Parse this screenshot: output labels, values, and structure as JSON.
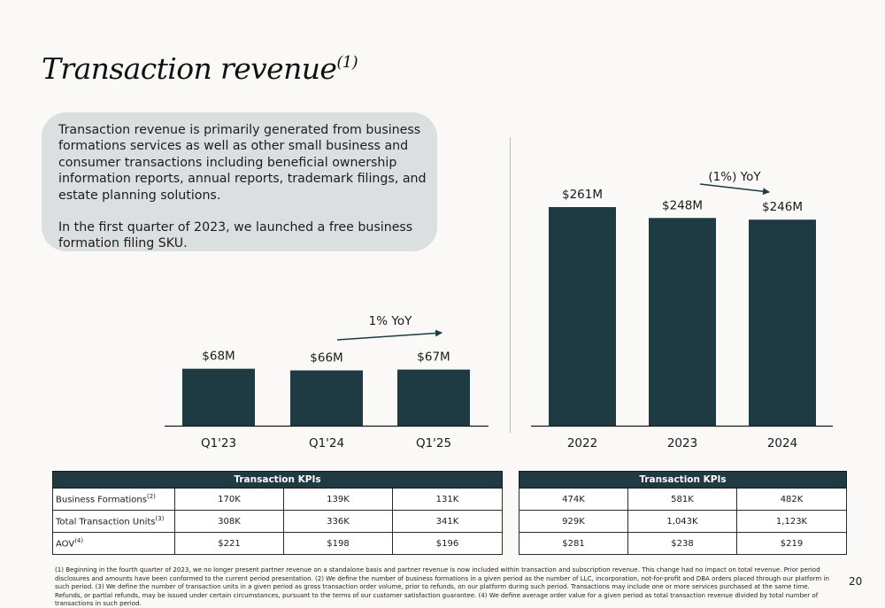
{
  "page": {
    "title": "Transaction revenue",
    "title_note": "(1)",
    "page_number": "20"
  },
  "textbox": {
    "paragraph1": "Transaction revenue is primarily generated from business formations services as well as other small business and consumer transactions including beneficial ownership information reports, annual reports, trademark filings, and estate planning solutions.",
    "paragraph2": "In the first quarter of 2023, we launched a free business formation filing SKU."
  },
  "colors": {
    "bar": "#1e3a42",
    "header": "#1f3a42",
    "textbox_bg": "#dcdfdf"
  },
  "chart_data": [
    {
      "type": "bar",
      "categories": [
        "Q1'23",
        "Q1'24",
        "Q1'25"
      ],
      "values": [
        68,
        66,
        67
      ],
      "value_labels": [
        "$68M",
        "$66M",
        "$67M"
      ],
      "unit": "$M",
      "annotation": "1% YoY",
      "ylim": [
        0,
        261
      ],
      "grid": false
    },
    {
      "type": "bar",
      "categories": [
        "2022",
        "2023",
        "2024"
      ],
      "values": [
        261,
        248,
        246
      ],
      "value_labels": [
        "$261M",
        "$248M",
        "$246M"
      ],
      "unit": "$M",
      "annotation": "(1%) YoY",
      "ylim": [
        0,
        261
      ],
      "grid": false
    }
  ],
  "kpi_left": {
    "header": "Transaction KPIs",
    "rows": [
      {
        "label": "Business Formations",
        "note": "(2)",
        "values": [
          "170K",
          "139K",
          "131K"
        ]
      },
      {
        "label": "Total Transaction Units",
        "note": "(3)",
        "values": [
          "308K",
          "336K",
          "341K"
        ]
      },
      {
        "label": "AOV",
        "note": "(4)",
        "values": [
          "$221",
          "$198",
          "$196"
        ]
      }
    ]
  },
  "kpi_right": {
    "header": "Transaction KPIs",
    "rows": [
      {
        "values": [
          "474K",
          "581K",
          "482K"
        ]
      },
      {
        "values": [
          "929K",
          "1,043K",
          "1,123K"
        ]
      },
      {
        "values": [
          "$281",
          "$238",
          "$219"
        ]
      }
    ]
  },
  "footnote": "(1) Beginning in the fourth quarter of 2023, we no longer present partner revenue on a standalone basis and partner revenue is now included within transaction and subscription revenue. This change had no impact on total revenue. Prior period disclosures and amounts have been conformed to the current period presentation. (2) We define the number of business formations in a given period as the number of LLC, incorporation, not-for-profit and DBA orders placed through our platform in such period. (3) We define the number of transaction units in a given period as gross transaction order volume, prior to refunds, on our platform during such period. Transactions may include one or more services purchased at the same time. Refunds, or partial refunds, may be issued under certain circumstances, pursuant to the terms of our customer satisfaction guarantee. (4) We define average order value for a given period as total transaction revenue divided by total number of transactions in such period."
}
